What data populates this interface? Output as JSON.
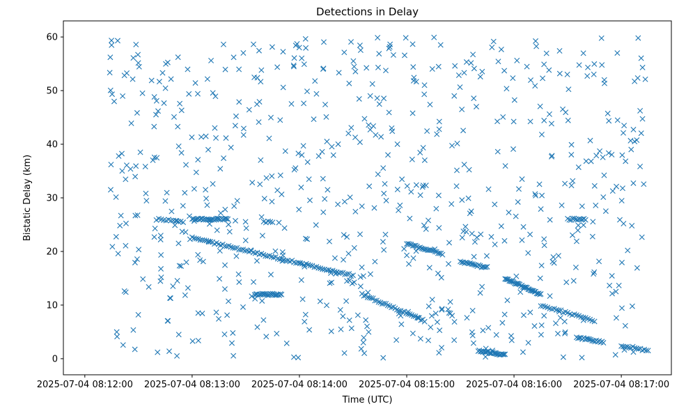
{
  "chart_data": {
    "type": "scatter",
    "title": "Detections in Delay",
    "xlabel": "Time (UTC)",
    "ylabel": "Bistatic Delay (km)",
    "x_ticks": [
      "2025-07-04 08:12:00",
      "2025-07-04 08:13:00",
      "2025-07-04 08:14:00",
      "2025-07-04 08:15:00",
      "2025-07-04 08:16:00",
      "2025-07-04 08:17:00"
    ],
    "y_ticks": [
      0,
      10,
      20,
      30,
      40,
      50,
      60
    ],
    "xlim": [
      "2025-07-04 08:11:48",
      "2025-07-04 08:17:28"
    ],
    "ylim": [
      -3,
      63
    ],
    "marker": "x",
    "color": "#1f77b4",
    "grid": false,
    "tracks": [
      {
        "start": "2025-07-04 08:13:00",
        "end": "2025-07-04 08:13:20",
        "y_start": 26.0,
        "y_end": 26.0,
        "count": 30
      },
      {
        "start": "2025-07-04 08:13:00",
        "end": "2025-07-04 08:14:30",
        "y_start": 22.5,
        "y_end": 15.5,
        "count": 80
      },
      {
        "start": "2025-07-04 08:13:35",
        "end": "2025-07-04 08:13:50",
        "y_start": 12.0,
        "y_end": 12.0,
        "count": 25
      },
      {
        "start": "2025-07-04 08:14:35",
        "end": "2025-07-04 08:15:10",
        "y_start": 12.0,
        "y_end": 7.0,
        "count": 35
      },
      {
        "start": "2025-07-04 08:15:00",
        "end": "2025-07-04 08:15:20",
        "y_start": 21.5,
        "y_end": 19.5,
        "count": 25
      },
      {
        "start": "2025-07-04 08:15:30",
        "end": "2025-07-04 08:15:45",
        "y_start": 18.0,
        "y_end": 17.0,
        "count": 20
      },
      {
        "start": "2025-07-04 08:15:40",
        "end": "2025-07-04 08:15:55",
        "y_start": 1.5,
        "y_end": 0.7,
        "count": 25
      },
      {
        "start": "2025-07-04 08:15:55",
        "end": "2025-07-04 08:16:15",
        "y_start": 15.0,
        "y_end": 12.0,
        "count": 35
      },
      {
        "start": "2025-07-04 08:16:15",
        "end": "2025-07-04 08:16:45",
        "y_start": 10.0,
        "y_end": 7.0,
        "count": 25
      },
      {
        "start": "2025-07-04 08:16:35",
        "end": "2025-07-04 08:16:50",
        "y_start": 4.0,
        "y_end": 3.0,
        "count": 20
      },
      {
        "start": "2025-07-04 08:17:00",
        "end": "2025-07-04 08:17:15",
        "y_start": 2.5,
        "y_end": 1.5,
        "count": 15
      },
      {
        "start": "2025-07-04 08:16:30",
        "end": "2025-07-04 08:16:40",
        "y_start": 26.0,
        "y_end": 26.0,
        "count": 12
      },
      {
        "start": "2025-07-04 08:13:40",
        "end": "2025-07-04 08:13:45",
        "y_start": 25.5,
        "y_end": 25.5,
        "count": 5
      },
      {
        "start": "2025-07-04 08:12:40",
        "end": "2025-07-04 08:12:55",
        "y_start": 26.0,
        "y_end": 25.5,
        "count": 12
      }
    ],
    "clutter": {
      "count": 700,
      "x_range": [
        "2025-07-04 08:12:12",
        "2025-07-04 08:17:14"
      ],
      "y_range": [
        0,
        60
      ]
    }
  }
}
